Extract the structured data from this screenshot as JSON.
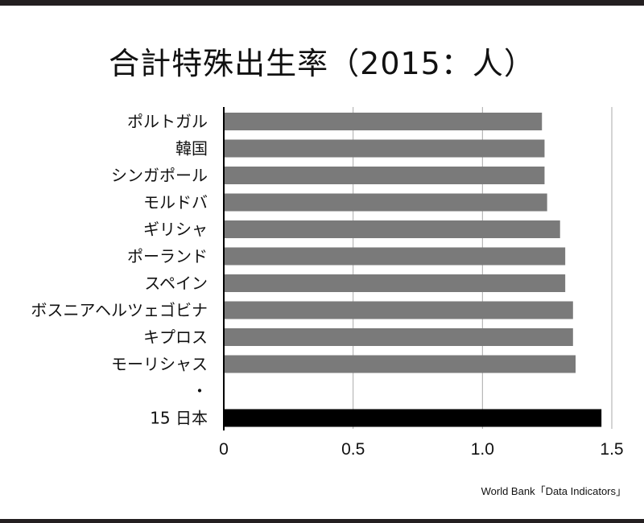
{
  "chart_data": {
    "type": "bar",
    "orientation": "horizontal",
    "title": "合計特殊出生率（2015：人）",
    "categories": [
      "ポルトガル",
      "韓国",
      "シンガポール",
      "モルドバ",
      "ギリシャ",
      "ポーランド",
      "スペイン",
      "ボスニアヘルツェゴビナ",
      "キプロス",
      "モーリシャス",
      "・",
      "15 日本"
    ],
    "values": [
      1.23,
      1.24,
      1.24,
      1.25,
      1.3,
      1.32,
      1.32,
      1.35,
      1.35,
      1.36,
      null,
      1.46
    ],
    "highlight_category": "15 日本",
    "xlim": [
      0,
      1.5
    ],
    "xticks": [
      "0",
      "0.5",
      "1.0",
      "1.5"
    ],
    "xlabel": "",
    "ylabel": "",
    "grid": "vertical",
    "colors": {
      "bar": "#7a7a7a",
      "highlight_bar": "#000000",
      "grid": "#aaaaaa",
      "axis": "#000000"
    },
    "source": "World Bank「Data Indicators」"
  }
}
